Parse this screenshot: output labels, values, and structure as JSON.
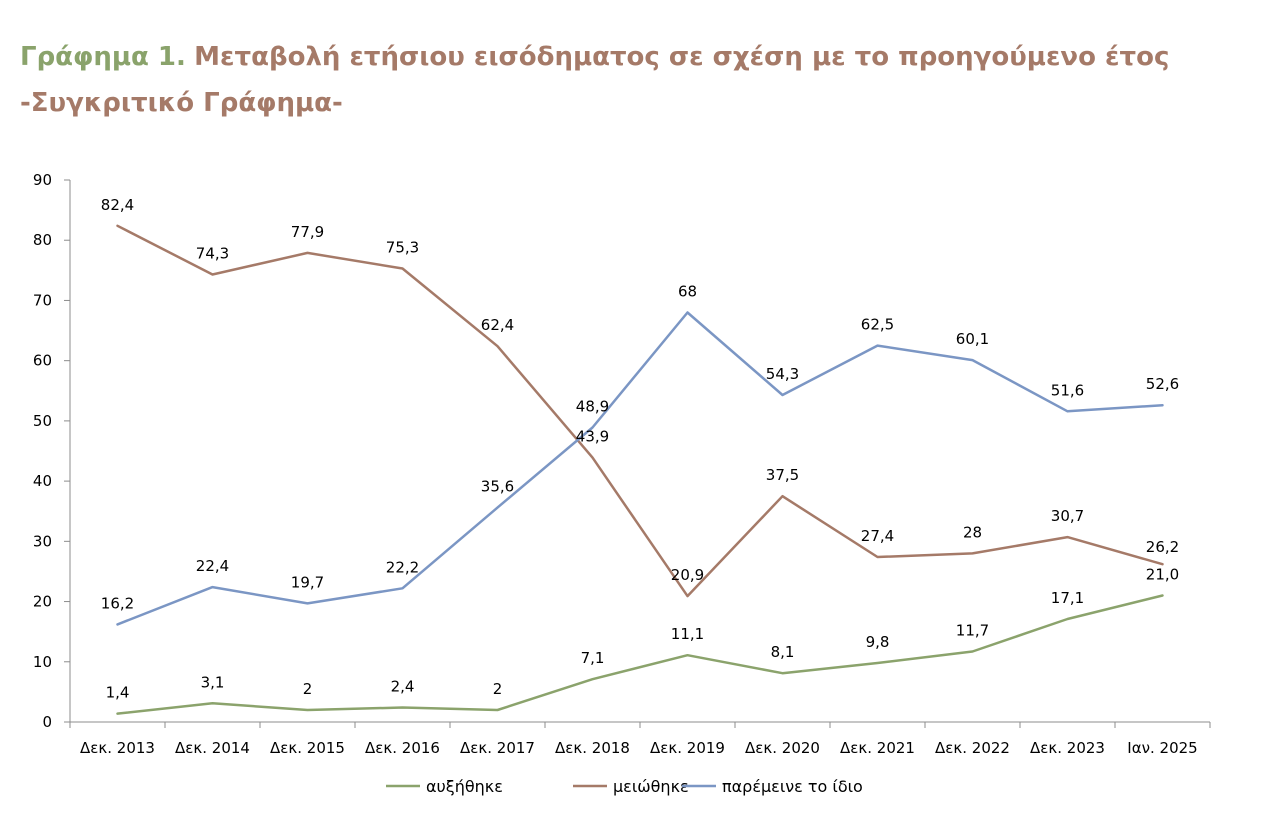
{
  "title": {
    "prefix": "Γράφημα 1.",
    "main": "Μεταβολή ετήσιου εισόδηματος σε σχέση με το προηγούμενο έτος",
    "line2": "-Συγκριτικό Γράφημα-"
  },
  "chart_data": {
    "type": "line",
    "categories": [
      "Δεκ. 2013",
      "Δεκ. 2014",
      "Δεκ. 2015",
      "Δεκ. 2016",
      "Δεκ. 2017",
      "Δεκ. 2018",
      "Δεκ. 2019",
      "Δεκ. 2020",
      "Δεκ. 2021",
      "Δεκ. 2022",
      "Δεκ. 2023",
      "Ιαν. 2025"
    ],
    "ylim": [
      0,
      90
    ],
    "yticks": [
      0,
      10,
      20,
      30,
      40,
      50,
      60,
      70,
      80,
      90
    ],
    "grid": false,
    "legend_position": "bottom",
    "series": [
      {
        "name": "αυξήθηκε",
        "color": "#8ba36c",
        "values": [
          1.4,
          3.1,
          2,
          2.4,
          2,
          7.1,
          11.1,
          8.1,
          9.8,
          11.7,
          17.1,
          21.0
        ],
        "labels": [
          "1,4",
          "3,1",
          "2",
          "2,4",
          "2",
          "7,1",
          "11,1",
          "8,1",
          "9,8",
          "11,7",
          "17,1",
          "21,0"
        ]
      },
      {
        "name": "μειώθηκε",
        "color": "#a57a68",
        "values": [
          82.4,
          74.3,
          77.9,
          75.3,
          62.4,
          43.9,
          20.9,
          37.5,
          27.4,
          28,
          30.7,
          26.2
        ],
        "labels": [
          "82,4",
          "74,3",
          "77,9",
          "75,3",
          "62,4",
          "43,9",
          "20,9",
          "37,5",
          "27,4",
          "28",
          "30,7",
          "26,2"
        ]
      },
      {
        "name": "παρέμεινε το ίδιο",
        "color": "#7b96c4",
        "values": [
          16.2,
          22.4,
          19.7,
          22.2,
          35.6,
          48.9,
          68,
          54.3,
          62.5,
          60.1,
          51.6,
          52.6
        ],
        "labels": [
          "16,2",
          "22,4",
          "19,7",
          "22,2",
          "35,6",
          "48,9",
          "68",
          "54,3",
          "62,5",
          "60,1",
          "51,6",
          "52,6"
        ]
      }
    ]
  }
}
